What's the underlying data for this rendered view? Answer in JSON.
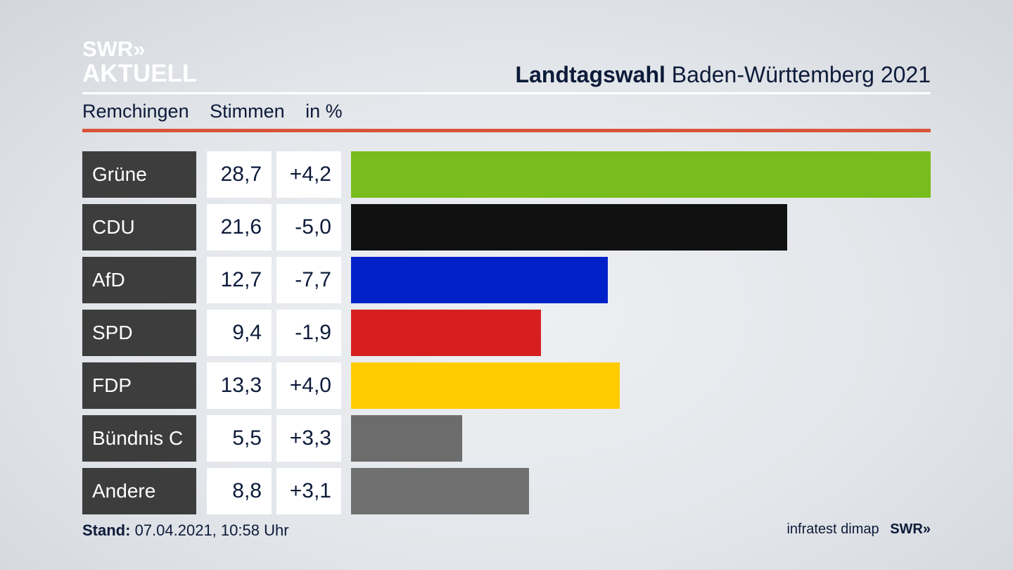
{
  "branding": {
    "logo_line1": "SWR»",
    "logo_line2": "AKTUELL",
    "footer_logo": "SWR»"
  },
  "header": {
    "title_bold": "Landtagswahl",
    "title_rest": "Baden-Württemberg 2021",
    "place": "Remchingen",
    "metric": "Stimmen",
    "unit": "in %"
  },
  "footer": {
    "stand_label": "Stand:",
    "stand_value": "07.04.2021, 10:58 Uhr",
    "source": "infratest dimap"
  },
  "chart_data": {
    "type": "bar",
    "orientation": "horizontal",
    "categories": [
      "Grüne",
      "CDU",
      "AfD",
      "SPD",
      "FDP",
      "Bündnis C",
      "Andere"
    ],
    "values": [
      28.7,
      21.6,
      12.7,
      9.4,
      13.3,
      5.5,
      8.8
    ],
    "value_labels": [
      "28,7",
      "21,6",
      "12,7",
      "9,4",
      "13,3",
      "5,5",
      "8,8"
    ],
    "changes": [
      4.2,
      -5.0,
      -7.7,
      -1.9,
      4.0,
      3.3,
      3.1
    ],
    "change_labels": [
      "+4,2",
      "-5,0",
      "-7,7",
      "-1,9",
      "+4,0",
      "+3,3",
      "+3,1"
    ],
    "colors": [
      "#78bc1e",
      "#111111",
      "#0021c8",
      "#d71f1f",
      "#ffcc00",
      "#6c6c6c",
      "#707070"
    ],
    "xlim": [
      0,
      28.7
    ]
  }
}
